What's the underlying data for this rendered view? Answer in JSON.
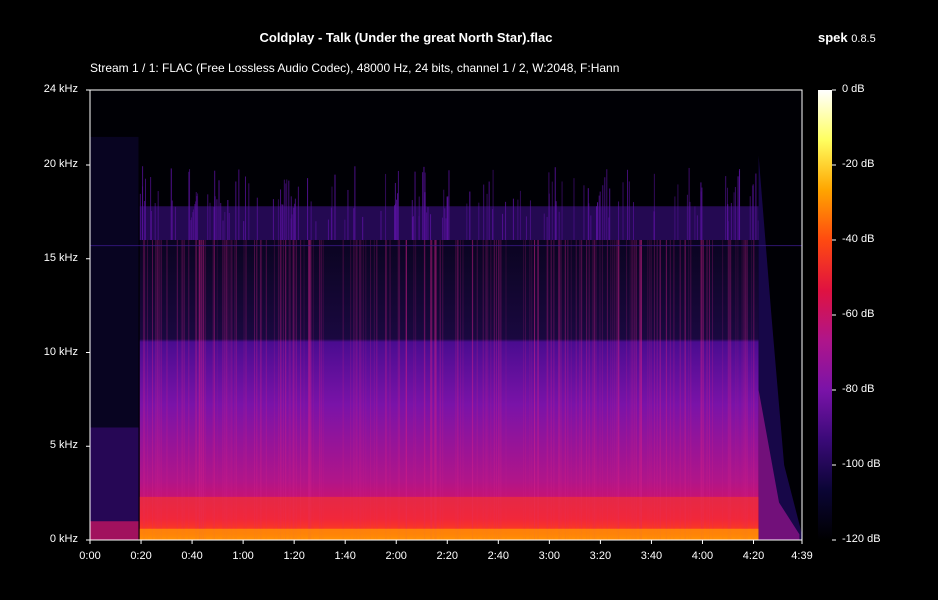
{
  "window": {
    "file_title": "Coldplay - Talk (Under the great North Star).flac",
    "app_name": "spek",
    "app_version": "0.8.5",
    "stream_info": "Stream 1 / 1: FLAC (Free Lossless Audio Codec), 48000 Hz, 24 bits, channel 1 / 2, W:2048, F:Hann"
  },
  "chart_data": {
    "type": "heatmap",
    "title": "Coldplay - Talk (Under the great North Star).flac",
    "x_ticks": [
      "0:00",
      "0:20",
      "0:40",
      "1:00",
      "1:20",
      "1:40",
      "2:00",
      "2:20",
      "2:40",
      "3:00",
      "3:20",
      "3:40",
      "4:00",
      "4:20",
      "4:39"
    ],
    "x_tick_seconds": [
      0,
      20,
      40,
      60,
      80,
      100,
      120,
      140,
      160,
      180,
      200,
      220,
      240,
      260,
      279
    ],
    "xlim": [
      0,
      279
    ],
    "y_ticks": [
      "0 kHz",
      "5 kHz",
      "10 kHz",
      "15 kHz",
      "20 kHz",
      "24 kHz"
    ],
    "y_tick_khz": [
      0,
      5,
      10,
      15,
      20,
      24
    ],
    "ylim": [
      0,
      24
    ],
    "colorbar_ticks": [
      "0 dB",
      "-20 dB",
      "-40 dB",
      "-60 dB",
      "-80 dB",
      "-100 dB",
      "-120 dB"
    ],
    "colorbar_db": [
      0,
      -20,
      -40,
      -60,
      -80,
      -100,
      -120
    ],
    "colorbar_range": [
      -120,
      0
    ],
    "cutoff_khz": 16,
    "colors": [
      "#000000",
      "#0b0535",
      "#3a0a78",
      "#7a13a8",
      "#b0158a",
      "#e01240",
      "#ff4a10",
      "#ffa500",
      "#ffff60",
      "#ffffff"
    ]
  }
}
